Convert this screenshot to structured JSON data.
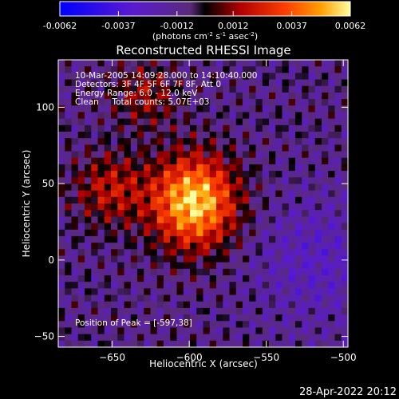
{
  "colorbar": {
    "ticks": [
      "-0.0062",
      "-0.0037",
      "-0.0012",
      "0.0012",
      "0.0037",
      "0.0062"
    ],
    "range": [
      -0.0062,
      0.0062
    ],
    "units_main": "(photons cm",
    "units_sup1": "-2",
    "units_mid1": " s",
    "units_sup2": "-1",
    "units_mid2": " asec",
    "units_sup3": "-2",
    "units_end": ")"
  },
  "chart_data": {
    "type": "heatmap",
    "title": "Reconstructed RHESSI Image",
    "xlabel": "Heliocentric X (arcsec)",
    "ylabel": "Heliocentric Y (arcsec)",
    "xlim": [
      -685,
      -497
    ],
    "ylim": [
      -57,
      131
    ],
    "xticks": [
      -650,
      -600,
      -550,
      -500
    ],
    "yticks": [
      100,
      50,
      0,
      -50
    ],
    "peak": {
      "x": -597,
      "y": 38
    },
    "annotations": [
      "10-Mar-2005 14:09:28.000 to 14:10:40.000",
      "Detectors: 3F 4F 5F 6F 7F 8F, Att 0",
      "Energy Range: 6.0 - 12.0 keV",
      "Clean     Total counts: 5.07E+03"
    ],
    "peak_label": "Position of Peak = [-597,38]",
    "grid": false
  },
  "footer": {
    "date": "28-Apr-2022 20:12"
  }
}
